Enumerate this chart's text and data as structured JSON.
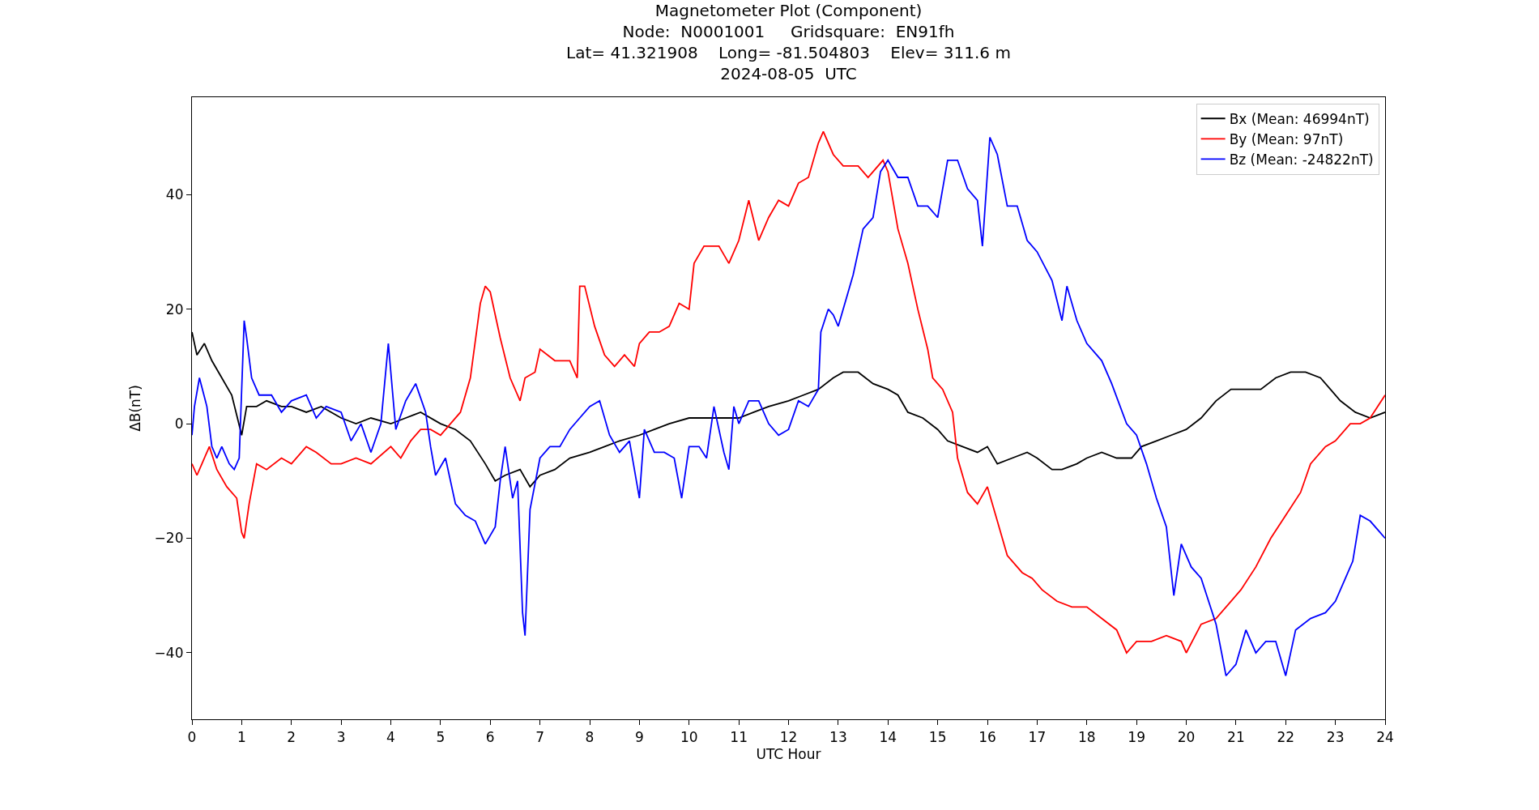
{
  "chart_data": {
    "type": "line",
    "title": "Magnetometer Plot (Component)\nNode:  N0001001     Gridsquare:  EN91fh\nLat= 41.321908    Long= -81.504803    Elev= 311.6 m\n2024-08-05  UTC",
    "xlabel": "UTC Hour",
    "ylabel": "ΔB(nT)",
    "xlim": [
      0,
      24
    ],
    "xticks": [
      0,
      1,
      2,
      3,
      4,
      5,
      6,
      7,
      8,
      9,
      10,
      11,
      12,
      13,
      14,
      15,
      16,
      17,
      18,
      19,
      20,
      21,
      22,
      23,
      24
    ],
    "ylim": [
      -51.6,
      57
    ],
    "yticks": [
      {
        "value": -40,
        "label": "−40"
      },
      {
        "value": -20,
        "label": "−20"
      },
      0,
      20,
      40
    ],
    "legend": "top right",
    "series": [
      {
        "name": "Bx (Mean: 46994nT)",
        "color": "#000000",
        "x": [
          0,
          0.1,
          0.25,
          0.4,
          0.6,
          0.8,
          1.0,
          1.1,
          1.3,
          1.5,
          1.8,
          2.0,
          2.3,
          2.6,
          3.0,
          3.3,
          3.6,
          4.0,
          4.3,
          4.6,
          5.0,
          5.3,
          5.6,
          5.9,
          6.1,
          6.3,
          6.6,
          6.8,
          7.0,
          7.3,
          7.6,
          8.0,
          8.3,
          8.6,
          9.0,
          9.3,
          9.6,
          10.0,
          10.3,
          10.6,
          11.0,
          11.3,
          11.6,
          12.0,
          12.3,
          12.6,
          12.9,
          13.1,
          13.4,
          13.7,
          14.0,
          14.2,
          14.4,
          14.7,
          15.0,
          15.2,
          15.5,
          15.8,
          16.0,
          16.2,
          16.5,
          16.8,
          17.0,
          17.3,
          17.5,
          17.8,
          18.0,
          18.3,
          18.6,
          18.9,
          19.1,
          19.4,
          19.7,
          20.0,
          20.3,
          20.6,
          20.9,
          21.2,
          21.5,
          21.8,
          22.1,
          22.4,
          22.7,
          22.9,
          23.1,
          23.4,
          23.7,
          24.0
        ],
        "values": [
          16,
          12,
          14,
          11,
          8,
          5,
          -2,
          3,
          3,
          4,
          3,
          3,
          2,
          3,
          1,
          0,
          1,
          0,
          1,
          2,
          0,
          -1,
          -3,
          -7,
          -10,
          -9,
          -8,
          -11,
          -9,
          -8,
          -6,
          -5,
          -4,
          -3,
          -2,
          -1,
          0,
          1,
          1,
          1,
          1,
          2,
          3,
          4,
          5,
          6,
          8,
          9,
          9,
          7,
          6,
          5,
          2,
          1,
          -1,
          -3,
          -4,
          -5,
          -4,
          -7,
          -6,
          -5,
          -6,
          -8,
          -8,
          -7,
          -6,
          -5,
          -6,
          -6,
          -4,
          -3,
          -2,
          -1,
          1,
          4,
          6,
          6,
          6,
          8,
          9,
          9,
          8,
          6,
          4,
          2,
          1,
          2
        ]
      },
      {
        "name": "By (Mean: 97nT)",
        "color": "#ff0000",
        "x": [
          0,
          0.1,
          0.2,
          0.35,
          0.5,
          0.7,
          0.9,
          1.0,
          1.05,
          1.15,
          1.3,
          1.5,
          1.8,
          2.0,
          2.3,
          2.5,
          2.8,
          3.0,
          3.3,
          3.6,
          4.0,
          4.2,
          4.4,
          4.6,
          4.8,
          5.0,
          5.2,
          5.4,
          5.6,
          5.8,
          5.9,
          6.0,
          6.2,
          6.4,
          6.6,
          6.7,
          6.9,
          7.0,
          7.3,
          7.6,
          7.75,
          7.8,
          7.9,
          8.1,
          8.3,
          8.5,
          8.7,
          8.9,
          9.0,
          9.2,
          9.4,
          9.6,
          9.8,
          10.0,
          10.1,
          10.3,
          10.6,
          10.8,
          11.0,
          11.2,
          11.4,
          11.6,
          11.8,
          12.0,
          12.2,
          12.4,
          12.6,
          12.7,
          12.9,
          13.1,
          13.4,
          13.6,
          13.9,
          14.0,
          14.2,
          14.4,
          14.6,
          14.8,
          14.9,
          15.1,
          15.3,
          15.4,
          15.6,
          15.8,
          16.0,
          16.2,
          16.4,
          16.7,
          16.9,
          17.1,
          17.4,
          17.7,
          18.0,
          18.3,
          18.6,
          18.8,
          19.0,
          19.3,
          19.6,
          19.9,
          20.0,
          20.3,
          20.6,
          20.9,
          21.1,
          21.4,
          21.7,
          22.0,
          22.3,
          22.5,
          22.8,
          23.0,
          23.3,
          23.5,
          23.7,
          24.0
        ],
        "values": [
          -7,
          -9,
          -7,
          -4,
          -8,
          -11,
          -13,
          -19,
          -20,
          -14,
          -7,
          -8,
          -6,
          -7,
          -4,
          -5,
          -7,
          -7,
          -6,
          -7,
          -4,
          -6,
          -3,
          -1,
          -1,
          -2,
          0,
          2,
          8,
          21,
          24,
          23,
          15,
          8,
          4,
          8,
          9,
          13,
          11,
          11,
          8,
          24,
          24,
          17,
          12,
          10,
          12,
          10,
          14,
          16,
          16,
          17,
          21,
          20,
          28,
          31,
          31,
          28,
          32,
          39,
          32,
          36,
          39,
          38,
          42,
          43,
          49,
          51,
          47,
          45,
          45,
          43,
          46,
          44,
          34,
          28,
          20,
          13,
          8,
          6,
          2,
          -6,
          -12,
          -14,
          -11,
          -17,
          -23,
          -26,
          -27,
          -29,
          -31,
          -32,
          -32,
          -34,
          -36,
          -40,
          -38,
          -38,
          -37,
          -38,
          -40,
          -35,
          -34,
          -31,
          -29,
          -25,
          -20,
          -16,
          -12,
          -7,
          -4,
          -3,
          0,
          0,
          1,
          5
        ]
      },
      {
        "name": "Bz (Mean: -24822nT)",
        "color": "#0000ff",
        "x": [
          0,
          0.05,
          0.15,
          0.3,
          0.4,
          0.5,
          0.6,
          0.75,
          0.85,
          0.95,
          1.05,
          1.1,
          1.2,
          1.35,
          1.6,
          1.8,
          2.0,
          2.3,
          2.5,
          2.7,
          3.0,
          3.2,
          3.4,
          3.6,
          3.8,
          3.95,
          4.1,
          4.3,
          4.5,
          4.7,
          4.8,
          4.9,
          5.1,
          5.3,
          5.5,
          5.7,
          5.9,
          6.1,
          6.2,
          6.3,
          6.45,
          6.55,
          6.65,
          6.7,
          6.8,
          7.0,
          7.2,
          7.4,
          7.6,
          7.8,
          8.0,
          8.2,
          8.4,
          8.6,
          8.8,
          9.0,
          9.1,
          9.3,
          9.5,
          9.7,
          9.85,
          10.0,
          10.2,
          10.35,
          10.5,
          10.7,
          10.8,
          10.9,
          11.0,
          11.2,
          11.4,
          11.6,
          11.8,
          12.0,
          12.2,
          12.4,
          12.6,
          12.65,
          12.8,
          12.9,
          13.0,
          13.3,
          13.5,
          13.7,
          13.85,
          14.0,
          14.2,
          14.4,
          14.6,
          14.8,
          15.0,
          15.2,
          15.4,
          15.6,
          15.8,
          15.9,
          16.05,
          16.2,
          16.4,
          16.6,
          16.8,
          17.0,
          17.3,
          17.5,
          17.6,
          17.8,
          18.0,
          18.3,
          18.5,
          18.8,
          19.0,
          19.2,
          19.4,
          19.6,
          19.75,
          19.9,
          20.1,
          20.3,
          20.6,
          20.8,
          21.0,
          21.2,
          21.4,
          21.6,
          21.8,
          22.0,
          22.2,
          22.5,
          22.8,
          23.0,
          23.2,
          23.35,
          23.5,
          23.7,
          23.9,
          24.0
        ],
        "values": [
          -2,
          3,
          8,
          3,
          -4,
          -6,
          -4,
          -7,
          -8,
          -6,
          18,
          15,
          8,
          5,
          5,
          2,
          4,
          5,
          1,
          3,
          2,
          -3,
          0,
          -5,
          0,
          14,
          -1,
          4,
          7,
          2,
          -4,
          -9,
          -6,
          -14,
          -16,
          -17,
          -21,
          -18,
          -10,
          -4,
          -13,
          -10,
          -33,
          -37,
          -15,
          -6,
          -4,
          -4,
          -1,
          1,
          3,
          4,
          -2,
          -5,
          -3,
          -13,
          -1,
          -5,
          -5,
          -6,
          -13,
          -4,
          -4,
          -6,
          3,
          -5,
          -8,
          3,
          0,
          4,
          4,
          0,
          -2,
          -1,
          4,
          3,
          6,
          16,
          20,
          19,
          17,
          26,
          34,
          36,
          44,
          46,
          43,
          43,
          38,
          38,
          36,
          46,
          46,
          41,
          39,
          31,
          50,
          47,
          38,
          38,
          32,
          30,
          25,
          18,
          24,
          18,
          14,
          11,
          7,
          0,
          -2,
          -7,
          -13,
          -18,
          -30,
          -21,
          -25,
          -27,
          -35,
          -44,
          -42,
          -36,
          -40,
          -38,
          -38,
          -44,
          -36,
          -34,
          -33,
          -31,
          -27,
          -24,
          -16,
          -17,
          -19,
          -20
        ]
      }
    ]
  }
}
